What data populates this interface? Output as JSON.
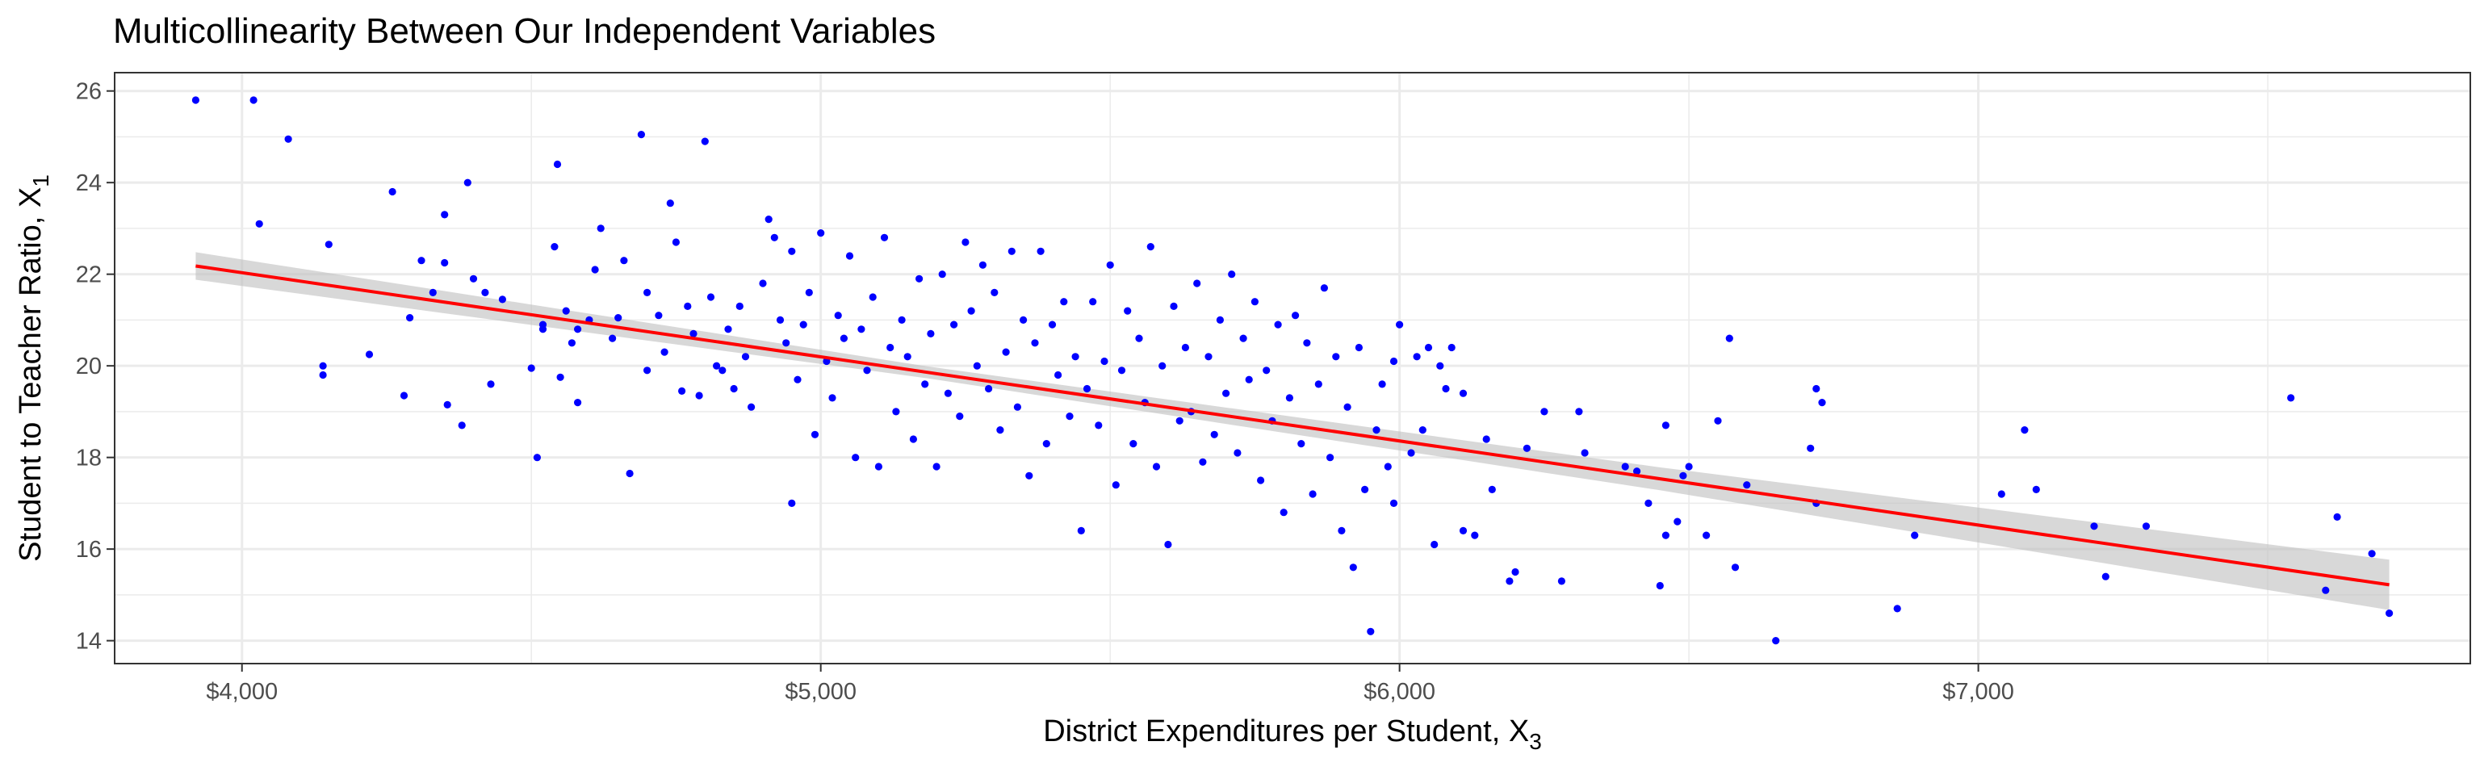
{
  "chart_data": {
    "type": "scatter",
    "title": "Multicollinearity Between Our Independent Variables",
    "xlabel": "District Expenditures per Student, X",
    "xlabel_sub": "3",
    "ylabel": "Student to Teacher Ratio, X",
    "ylabel_sub": "1",
    "xlim": [
      3780,
      7850
    ],
    "ylim": [
      13.5,
      26.4
    ],
    "x_ticks": [
      4000,
      5000,
      6000,
      7000
    ],
    "x_tick_labels": [
      "$4,000",
      "$5,000",
      "$6,000",
      "$7,000"
    ],
    "y_ticks": [
      14,
      16,
      18,
      20,
      22,
      24,
      26
    ],
    "y_tick_labels": [
      "14",
      "16",
      "18",
      "20",
      "22",
      "24",
      "26"
    ],
    "grid": true,
    "point_color": "#0000ff",
    "fit_line_color": "#ff0000",
    "ci_band_color": "#bebebe",
    "fit_line": {
      "x": [
        3920,
        7710
      ],
      "y": [
        22.18,
        15.22
      ],
      "ci_half_width": [
        0.3,
        0.13,
        0.25,
        0.55
      ]
    },
    "series": [
      {
        "points": [
          [
            3920,
            25.8
          ],
          [
            4020,
            25.8
          ],
          [
            4080,
            24.95
          ],
          [
            4030,
            23.1
          ],
          [
            4150,
            22.65
          ],
          [
            4140,
            20.0
          ],
          [
            4140,
            19.8
          ],
          [
            4220,
            20.25
          ],
          [
            4260,
            23.8
          ],
          [
            4290,
            21.05
          ],
          [
            4280,
            19.35
          ],
          [
            4310,
            22.3
          ],
          [
            4330,
            21.6
          ],
          [
            4350,
            23.3
          ],
          [
            4350,
            22.25
          ],
          [
            4355,
            19.15
          ],
          [
            4380,
            18.7
          ],
          [
            4390,
            24.0
          ],
          [
            4400,
            21.9
          ],
          [
            4420,
            21.6
          ],
          [
            4430,
            19.6
          ],
          [
            4450,
            21.45
          ],
          [
            4510,
            18.0
          ],
          [
            4500,
            19.95
          ],
          [
            4520,
            20.9
          ],
          [
            4520,
            20.8
          ],
          [
            4540,
            22.6
          ],
          [
            4545,
            24.4
          ],
          [
            4550,
            19.75
          ],
          [
            4560,
            21.2
          ],
          [
            4570,
            20.5
          ],
          [
            4580,
            20.8
          ],
          [
            4580,
            19.2
          ],
          [
            4600,
            21.0
          ],
          [
            4610,
            22.1
          ],
          [
            4620,
            23.0
          ],
          [
            4640,
            20.6
          ],
          [
            4650,
            21.05
          ],
          [
            4660,
            22.3
          ],
          [
            4670,
            17.65
          ],
          [
            4690,
            25.05
          ],
          [
            4700,
            19.9
          ],
          [
            4700,
            21.6
          ],
          [
            4720,
            21.1
          ],
          [
            4730,
            20.3
          ],
          [
            4740,
            23.55
          ],
          [
            4750,
            22.7
          ],
          [
            4760,
            19.45
          ],
          [
            4770,
            21.3
          ],
          [
            4780,
            20.7
          ],
          [
            4790,
            19.35
          ],
          [
            4800,
            24.9
          ],
          [
            4810,
            21.5
          ],
          [
            4820,
            20.0
          ],
          [
            4830,
            19.9
          ],
          [
            4840,
            20.8
          ],
          [
            4850,
            19.5
          ],
          [
            4860,
            21.3
          ],
          [
            4870,
            20.2
          ],
          [
            4880,
            19.1
          ],
          [
            4900,
            21.8
          ],
          [
            4910,
            23.2
          ],
          [
            4920,
            22.8
          ],
          [
            4930,
            21.0
          ],
          [
            4940,
            20.5
          ],
          [
            4950,
            22.5
          ],
          [
            4950,
            17.0
          ],
          [
            4960,
            19.7
          ],
          [
            4970,
            20.9
          ],
          [
            4980,
            21.6
          ],
          [
            4990,
            18.5
          ],
          [
            5000,
            22.9
          ],
          [
            5010,
            20.1
          ],
          [
            5020,
            19.3
          ],
          [
            5030,
            21.1
          ],
          [
            5040,
            20.6
          ],
          [
            5050,
            22.4
          ],
          [
            5060,
            18.0
          ],
          [
            5070,
            20.8
          ],
          [
            5080,
            19.9
          ],
          [
            5090,
            21.5
          ],
          [
            5100,
            17.8
          ],
          [
            5110,
            22.8
          ],
          [
            5120,
            20.4
          ],
          [
            5130,
            19.0
          ],
          [
            5140,
            21.0
          ],
          [
            5150,
            20.2
          ],
          [
            5160,
            18.4
          ],
          [
            5170,
            21.9
          ],
          [
            5180,
            19.6
          ],
          [
            5190,
            20.7
          ],
          [
            5200,
            17.8
          ],
          [
            5210,
            22.0
          ],
          [
            5220,
            19.4
          ],
          [
            5230,
            20.9
          ],
          [
            5240,
            18.9
          ],
          [
            5250,
            22.7
          ],
          [
            5260,
            21.2
          ],
          [
            5270,
            20.0
          ],
          [
            5280,
            22.2
          ],
          [
            5290,
            19.5
          ],
          [
            5300,
            21.6
          ],
          [
            5310,
            18.6
          ],
          [
            5320,
            20.3
          ],
          [
            5330,
            22.5
          ],
          [
            5340,
            19.1
          ],
          [
            5350,
            21.0
          ],
          [
            5360,
            17.6
          ],
          [
            5370,
            20.5
          ],
          [
            5380,
            22.5
          ],
          [
            5390,
            18.3
          ],
          [
            5400,
            20.9
          ],
          [
            5410,
            19.8
          ],
          [
            5420,
            21.4
          ],
          [
            5430,
            18.9
          ],
          [
            5440,
            20.2
          ],
          [
            5450,
            16.4
          ],
          [
            5460,
            19.5
          ],
          [
            5470,
            21.4
          ],
          [
            5480,
            18.7
          ],
          [
            5490,
            20.1
          ],
          [
            5500,
            22.2
          ],
          [
            5510,
            17.4
          ],
          [
            5520,
            19.9
          ],
          [
            5530,
            21.2
          ],
          [
            5540,
            18.3
          ],
          [
            5550,
            20.6
          ],
          [
            5560,
            19.2
          ],
          [
            5570,
            22.6
          ],
          [
            5580,
            17.8
          ],
          [
            5590,
            20.0
          ],
          [
            5600,
            16.1
          ],
          [
            5610,
            21.3
          ],
          [
            5620,
            18.8
          ],
          [
            5630,
            20.4
          ],
          [
            5640,
            19.0
          ],
          [
            5650,
            21.8
          ],
          [
            5660,
            17.9
          ],
          [
            5670,
            20.2
          ],
          [
            5680,
            18.5
          ],
          [
            5690,
            21.0
          ],
          [
            5700,
            19.4
          ],
          [
            5710,
            22.0
          ],
          [
            5720,
            18.1
          ],
          [
            5730,
            20.6
          ],
          [
            5740,
            19.7
          ],
          [
            5750,
            21.4
          ],
          [
            5760,
            17.5
          ],
          [
            5770,
            19.9
          ],
          [
            5780,
            18.8
          ],
          [
            5790,
            20.9
          ],
          [
            5800,
            16.8
          ],
          [
            5810,
            19.3
          ],
          [
            5820,
            21.1
          ],
          [
            5830,
            18.3
          ],
          [
            5840,
            20.5
          ],
          [
            5850,
            17.2
          ],
          [
            5860,
            19.6
          ],
          [
            5870,
            21.7
          ],
          [
            5880,
            18.0
          ],
          [
            5890,
            20.2
          ],
          [
            5900,
            16.4
          ],
          [
            5910,
            19.1
          ],
          [
            5920,
            15.6
          ],
          [
            5930,
            20.4
          ],
          [
            5940,
            17.3
          ],
          [
            5950,
            14.2
          ],
          [
            5960,
            18.6
          ],
          [
            5970,
            19.6
          ],
          [
            5980,
            17.8
          ],
          [
            5990,
            20.1
          ],
          [
            6000,
            20.9
          ],
          [
            5990,
            17.0
          ],
          [
            6020,
            18.1
          ],
          [
            6030,
            20.2
          ],
          [
            6040,
            18.6
          ],
          [
            6050,
            20.4
          ],
          [
            6060,
            16.1
          ],
          [
            6070,
            20.0
          ],
          [
            6080,
            19.5
          ],
          [
            6090,
            20.4
          ],
          [
            6110,
            19.4
          ],
          [
            6110,
            16.4
          ],
          [
            6130,
            16.3
          ],
          [
            6150,
            18.4
          ],
          [
            6160,
            17.3
          ],
          [
            6190,
            15.3
          ],
          [
            6200,
            15.5
          ],
          [
            6220,
            18.2
          ],
          [
            6250,
            19.0
          ],
          [
            6280,
            15.3
          ],
          [
            6310,
            19.0
          ],
          [
            6320,
            18.1
          ],
          [
            6390,
            17.8
          ],
          [
            6410,
            17.7
          ],
          [
            6430,
            17.0
          ],
          [
            6450,
            15.2
          ],
          [
            6460,
            18.7
          ],
          [
            6460,
            16.3
          ],
          [
            6480,
            16.6
          ],
          [
            6490,
            17.6
          ],
          [
            6500,
            17.8
          ],
          [
            6530,
            16.3
          ],
          [
            6550,
            18.8
          ],
          [
            6570,
            20.6
          ],
          [
            6580,
            15.6
          ],
          [
            6600,
            17.4
          ],
          [
            6650,
            14.0
          ],
          [
            6710,
            18.2
          ],
          [
            6720,
            19.5
          ],
          [
            6730,
            19.2
          ],
          [
            6720,
            17.0
          ],
          [
            6860,
            14.7
          ],
          [
            6890,
            16.3
          ],
          [
            7040,
            17.2
          ],
          [
            7080,
            18.6
          ],
          [
            7100,
            17.3
          ],
          [
            7200,
            16.5
          ],
          [
            7220,
            15.4
          ],
          [
            7290,
            16.5
          ],
          [
            7540,
            19.3
          ],
          [
            7600,
            15.1
          ],
          [
            7620,
            16.7
          ],
          [
            7680,
            15.9
          ],
          [
            7710,
            14.6
          ]
        ]
      }
    ]
  }
}
